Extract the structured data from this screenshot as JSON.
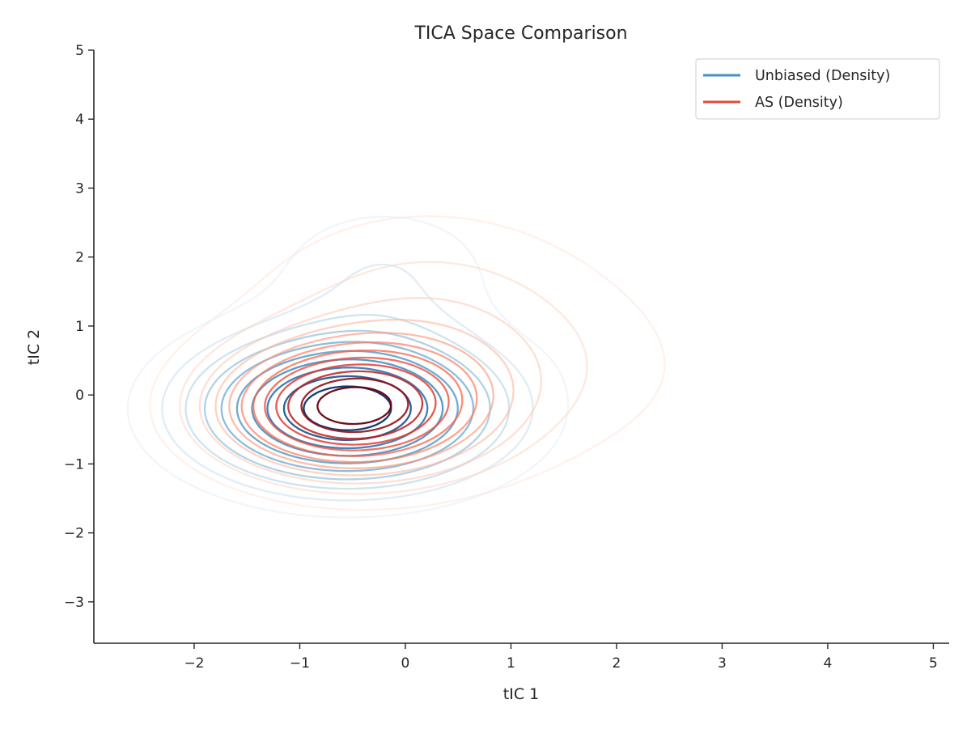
{
  "chart_data": {
    "type": "contour",
    "title": "TICA Space Comparison",
    "xlabel": "tIC 1",
    "ylabel": "tIC 2",
    "xlim": [
      -2.95,
      5.15
    ],
    "ylim": [
      -3.6,
      5.0
    ],
    "xticks": [
      -2,
      -1,
      0,
      1,
      2,
      3,
      4,
      5
    ],
    "yticks": [
      -3,
      -2,
      -1,
      0,
      1,
      2,
      3,
      4,
      5
    ],
    "grid": false,
    "legend_position": "top-right",
    "series": [
      {
        "name": "Unbiased (Density)",
        "color": "#4292c6",
        "colormap": [
          "#deebf7",
          "#9ecae1",
          "#4292c6",
          "#2171b5",
          "#08306b"
        ],
        "components": [
          {
            "mx": -0.55,
            "my": -0.2,
            "sx": 0.95,
            "sy": 0.72,
            "w": 1.0
          },
          {
            "mx": -0.2,
            "my": 1.8,
            "sx": 0.75,
            "sy": 0.7,
            "w": 0.17
          },
          {
            "mx": 2.35,
            "my": 0.95,
            "sx": 0.55,
            "sy": 0.5,
            "w": 0.07
          }
        ],
        "levels": 10
      },
      {
        "name": "AS (Density)",
        "color": "#e34a33",
        "colormap": [
          "#fee0d2",
          "#fcbba1",
          "#fb6a4a",
          "#de2d26",
          "#67000d"
        ],
        "components": [
          {
            "mx": -0.55,
            "my": -0.2,
            "sx": 0.82,
            "sy": 0.62,
            "w": 1.0
          },
          {
            "mx": 0.2,
            "my": 0.8,
            "sx": 1.15,
            "sy": 1.2,
            "w": 0.27
          },
          {
            "mx": 1.9,
            "my": 0.3,
            "sx": 1.0,
            "sy": 0.95,
            "w": 0.06
          }
        ],
        "levels": 12
      }
    ]
  }
}
